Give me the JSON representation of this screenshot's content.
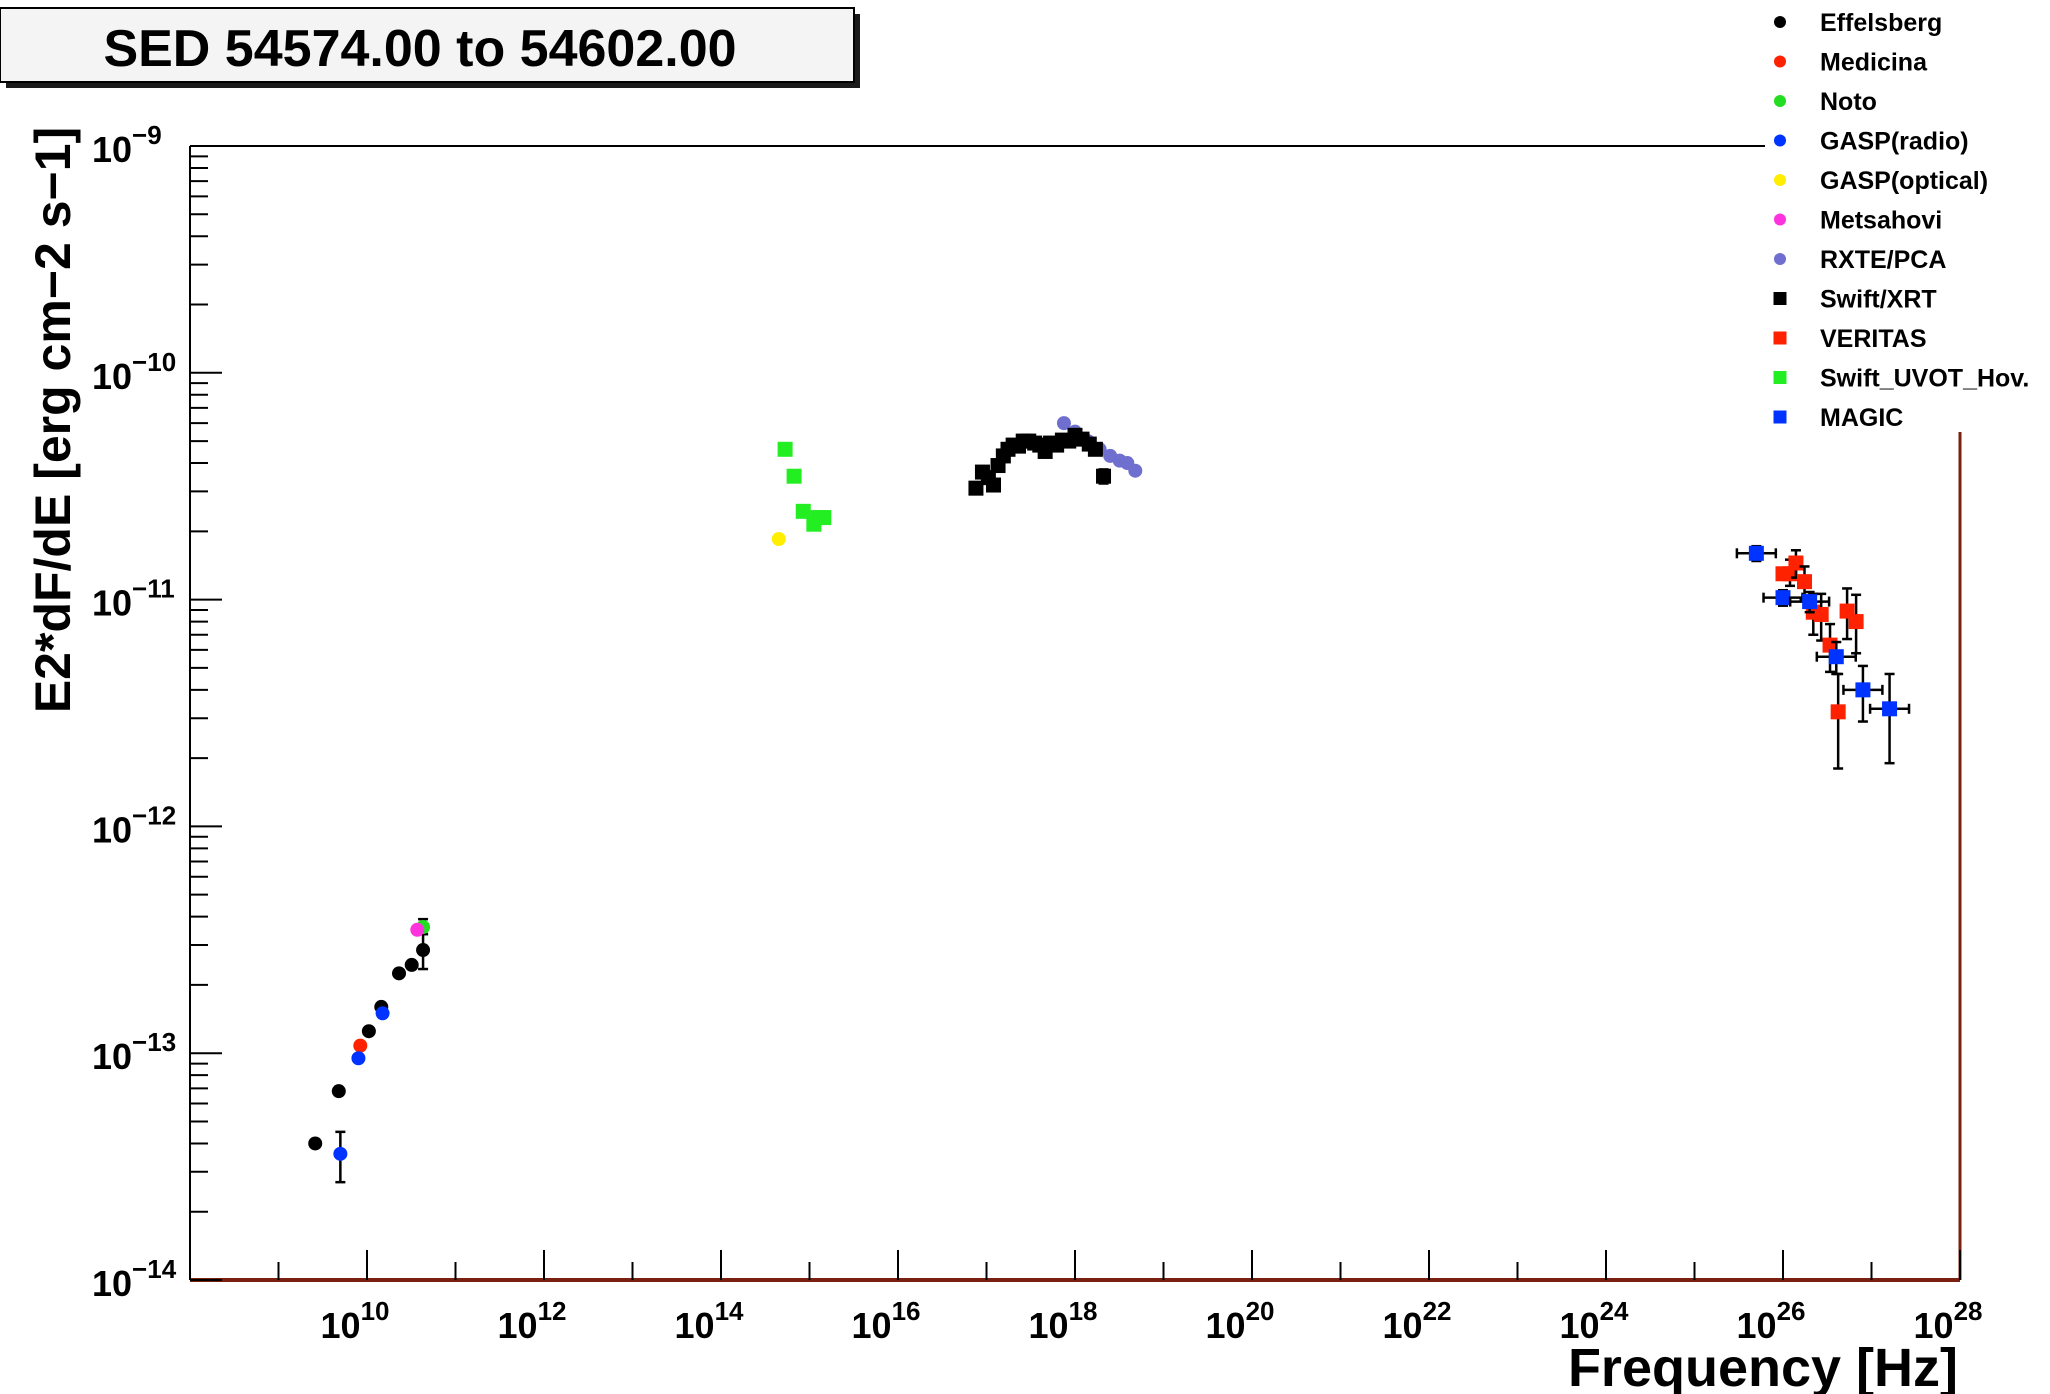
{
  "chart_data": {
    "type": "scatter",
    "title": "SED 54574.00 to 54602.00",
    "xlabel": "Frequency [Hz]",
    "ylabel": "E2*dF/dE [erg cm−2 s−1]",
    "x_scale": "log",
    "y_scale": "log",
    "xlim": [
      100000000.0,
      1e+28
    ],
    "ylim": [
      1e-14,
      1e-09
    ],
    "grid": false,
    "legend_position": "top-right",
    "x_tick_labels": [
      {
        "base": "10",
        "exp": "10"
      },
      {
        "base": "10",
        "exp": "12"
      },
      {
        "base": "10",
        "exp": "14"
      },
      {
        "base": "10",
        "exp": "16"
      },
      {
        "base": "10",
        "exp": "18"
      },
      {
        "base": "10",
        "exp": "20"
      },
      {
        "base": "10",
        "exp": "22"
      },
      {
        "base": "10",
        "exp": "24"
      },
      {
        "base": "10",
        "exp": "26"
      },
      {
        "base": "10",
        "exp": "28"
      }
    ],
    "y_tick_labels": [
      {
        "base": "10",
        "exp": "−9"
      },
      {
        "base": "10",
        "exp": "−10"
      },
      {
        "base": "10",
        "exp": "−11"
      },
      {
        "base": "10",
        "exp": "−12"
      },
      {
        "base": "10",
        "exp": "−13"
      },
      {
        "base": "10",
        "exp": "−14"
      }
    ],
    "series": [
      {
        "name": "Effelsberg",
        "marker": "circle",
        "color": "#000000",
        "points": [
          {
            "x": 2600000000.0,
            "y": 4e-14
          },
          {
            "x": 4800000000.0,
            "y": 6.8e-14
          },
          {
            "x": 10500000000.0,
            "y": 1.25e-13
          },
          {
            "x": 14500000000.0,
            "y": 1.6e-13
          },
          {
            "x": 23000000000.0,
            "y": 2.25e-13
          },
          {
            "x": 32000000000.0,
            "y": 2.45e-13
          },
          {
            "x": 43000000000.0,
            "y": 2.85e-13,
            "yerr_lo": 5e-14,
            "yerr_hi": 5e-14
          }
        ]
      },
      {
        "name": "Medicina",
        "marker": "circle",
        "color": "#ff2200",
        "points": [
          {
            "x": 8400000000.0,
            "y": 1.08e-13
          }
        ]
      },
      {
        "name": "Noto",
        "marker": "circle",
        "color": "#22dd22",
        "points": [
          {
            "x": 43000000000.0,
            "y": 3.6e-13,
            "yerr_lo": 2.5e-14,
            "yerr_hi": 3e-14
          }
        ]
      },
      {
        "name": "GASP(radio)",
        "marker": "circle",
        "color": "#0033ff",
        "points": [
          {
            "x": 5000000000.0,
            "y": 3.6e-14,
            "yerr_lo": 9e-15,
            "yerr_hi": 9e-15
          },
          {
            "x": 8000000000.0,
            "y": 9.5e-14
          },
          {
            "x": 15000000000.0,
            "y": 1.5e-13
          }
        ]
      },
      {
        "name": "GASP(optical)",
        "marker": "circle",
        "color": "#ffee00",
        "points": [
          {
            "x": 450000000000000.0,
            "y": 1.85e-11
          }
        ]
      },
      {
        "name": "Metsahovi",
        "marker": "circle",
        "color": "#ff33dd",
        "points": [
          {
            "x": 37000000000.0,
            "y": 3.5e-13
          }
        ]
      },
      {
        "name": "RXTE/PCA",
        "marker": "circle",
        "color": "#6f6fd0",
        "points": [
          {
            "x": 7.5e+17,
            "y": 6e-11
          },
          {
            "x": 1e+18,
            "y": 5.5e-11
          },
          {
            "x": 1.4e+18,
            "y": 5e-11
          },
          {
            "x": 1.9e+18,
            "y": 4.6e-11
          },
          {
            "x": 2.5e+18,
            "y": 4.3e-11
          },
          {
            "x": 3.2e+18,
            "y": 4.1e-11
          },
          {
            "x": 3.9e+18,
            "y": 4e-11
          },
          {
            "x": 4.8e+18,
            "y": 3.7e-11
          }
        ]
      },
      {
        "name": "Swift/XRT",
        "marker": "square",
        "color": "#000000",
        "points": [
          {
            "x": 7.6e+16,
            "y": 3.1e-11
          },
          {
            "x": 9e+16,
            "y": 3.65e-11
          },
          {
            "x": 1.05e+17,
            "y": 3.45e-11
          },
          {
            "x": 1.2e+17,
            "y": 3.2e-11
          },
          {
            "x": 1.35e+17,
            "y": 3.9e-11
          },
          {
            "x": 1.55e+17,
            "y": 4.3e-11
          },
          {
            "x": 1.75e+17,
            "y": 4.6e-11
          },
          {
            "x": 2e+17,
            "y": 4.8e-11
          },
          {
            "x": 2.3e+17,
            "y": 4.75e-11
          },
          {
            "x": 2.6e+17,
            "y": 5e-11
          },
          {
            "x": 3e+17,
            "y": 5e-11
          },
          {
            "x": 3.5e+17,
            "y": 4.9e-11
          },
          {
            "x": 4e+17,
            "y": 4.8e-11
          },
          {
            "x": 4.6e+17,
            "y": 4.5e-11
          },
          {
            "x": 5.3e+17,
            "y": 4.9e-11
          },
          {
            "x": 6.2e+17,
            "y": 4.8e-11
          },
          {
            "x": 7.2e+17,
            "y": 5.05e-11
          },
          {
            "x": 8.5e+17,
            "y": 5e-11
          },
          {
            "x": 1e+18,
            "y": 5.3e-11
          },
          {
            "x": 1.2e+18,
            "y": 5.1e-11
          },
          {
            "x": 1.45e+18,
            "y": 4.85e-11
          },
          {
            "x": 1.7e+18,
            "y": 4.6e-11
          },
          {
            "x": 2.1e+18,
            "y": 3.5e-11,
            "yerr_lo": 2.5e-12,
            "yerr_hi": 2.5e-12
          }
        ]
      },
      {
        "name": "VERITAS",
        "marker": "square",
        "color": "#ff2200",
        "points": [
          {
            "x": 1e+26,
            "y": 1.3e-11
          },
          {
            "x": 1.2e+26,
            "y": 1.3e-11,
            "yerr_lo": 1.5e-12,
            "yerr_hi": 2e-12
          },
          {
            "x": 1.4e+26,
            "y": 1.45e-11,
            "yerr_lo": 2e-12,
            "yerr_hi": 2e-12
          },
          {
            "x": 1.75e+26,
            "y": 1.2e-11,
            "yerr_lo": 2e-12,
            "yerr_hi": 2e-12
          },
          {
            "x": 2.2e+26,
            "y": 8.8e-12,
            "yerr_lo": 1.8e-12,
            "yerr_hi": 1.8e-12
          },
          {
            "x": 2.7e+26,
            "y": 8.6e-12,
            "yerr_lo": 2e-12,
            "yerr_hi": 2e-12
          },
          {
            "x": 3.4e+26,
            "y": 6.3e-12,
            "yerr_lo": 1.5e-12,
            "yerr_hi": 1.5e-12
          },
          {
            "x": 4.2e+26,
            "y": 3.2e-12,
            "yerr_lo": 1.4e-12,
            "yerr_hi": 1.5e-12
          },
          {
            "x": 5.3e+26,
            "y": 8.9e-12,
            "yerr_lo": 2.2e-12,
            "yerr_hi": 2.3e-12
          },
          {
            "x": 6.7e+26,
            "y": 8e-12,
            "yerr_lo": 2.2e-12,
            "yerr_hi": 2.5e-12
          }
        ]
      },
      {
        "name": "Swift_UVOT_Hov.",
        "marker": "square",
        "color": "#22ee22",
        "points": [
          {
            "x": 530000000000000.0,
            "y": 4.6e-11
          },
          {
            "x": 670000000000000.0,
            "y": 3.5e-11
          },
          {
            "x": 850000000000000.0,
            "y": 2.45e-11
          },
          {
            "x": 1120000000000000.0,
            "y": 2.15e-11
          },
          {
            "x": 1250000000000000.0,
            "y": 2.3e-11
          },
          {
            "x": 1450000000000000.0,
            "y": 2.3e-11
          }
        ]
      },
      {
        "name": "MAGIC",
        "marker": "square",
        "color": "#0033ff",
        "points": [
          {
            "x": 5e+25,
            "y": 1.6e-11,
            "xerr": 0.22,
            "yerr_lo": 1.2e-12,
            "yerr_hi": 1.2e-12
          },
          {
            "x": 1e+26,
            "y": 1.02e-11,
            "xerr": 0.22,
            "yerr_lo": 8e-13,
            "yerr_hi": 8e-13
          },
          {
            "x": 2e+26,
            "y": 9.8e-12,
            "xerr": 0.22,
            "yerr_lo": 1e-12,
            "yerr_hi": 1e-12
          },
          {
            "x": 4e+26,
            "y": 5.6e-12,
            "xerr": 0.22,
            "yerr_lo": 9e-13,
            "yerr_hi": 9e-13
          },
          {
            "x": 8e+26,
            "y": 4e-12,
            "xerr": 0.22,
            "yerr_lo": 1.1e-12,
            "yerr_hi": 1.1e-12
          },
          {
            "x": 1.6e+27,
            "y": 3.3e-12,
            "xerr": 0.22,
            "yerr_lo": 1.4e-12,
            "yerr_hi": 1.4e-12
          }
        ]
      }
    ]
  }
}
